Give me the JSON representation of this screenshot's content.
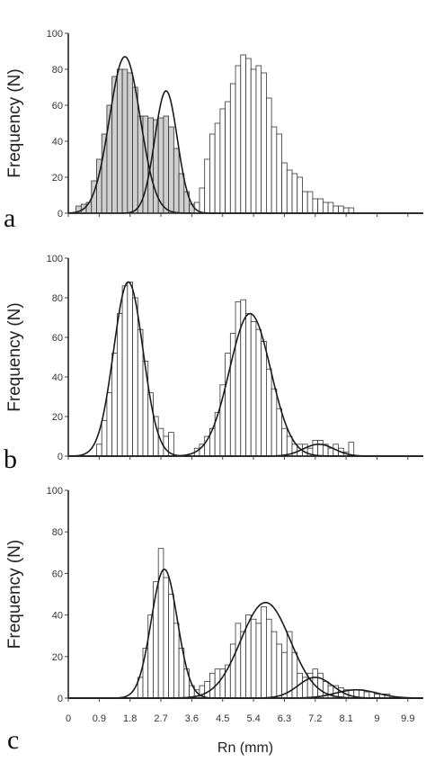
{
  "figure": {
    "xlabel": "Rn (mm)",
    "x_tick_labels": [
      "0",
      "0.9",
      "1.8",
      "2.7",
      "3.6",
      "4.5",
      "5.4",
      "6.3",
      "7.2",
      "8.1",
      "9",
      "9.9"
    ],
    "colors": {
      "bar_fill": "#ffffff",
      "bar_fill_shaded": "#cfcfcf",
      "bar_stroke": "#333333",
      "curve": "#1a1a1a"
    }
  },
  "chart_data": [
    {
      "type": "bar",
      "panel": "a",
      "ylabel": "Frequency (N)",
      "ylim": [
        0,
        100
      ],
      "y_ticks": [
        "0",
        "20",
        "40",
        "60",
        "80",
        "100"
      ],
      "xlim": [
        0,
        10.35
      ],
      "bin_width": 0.15,
      "series": [
        {
          "style": "shaded",
          "x": [
            0.3,
            0.45,
            0.6,
            0.75,
            0.9,
            1.05,
            1.2,
            1.35,
            1.5,
            1.65,
            1.8,
            1.95,
            2.1,
            2.25,
            2.4,
            2.55,
            2.7,
            2.85,
            3.0,
            3.15,
            3.3,
            3.45,
            3.6
          ],
          "values": [
            4,
            5,
            6,
            18,
            30,
            44,
            60,
            76,
            80,
            80,
            78,
            70,
            54,
            54,
            53,
            52,
            53,
            54,
            48,
            36,
            22,
            12,
            5
          ]
        },
        {
          "style": "open",
          "x": [
            3.75,
            3.9,
            4.05,
            4.2,
            4.35,
            4.5,
            4.65,
            4.8,
            4.95,
            5.1,
            5.25,
            5.4,
            5.55,
            5.7,
            5.85,
            6.0,
            6.15,
            6.3,
            6.45,
            6.6,
            6.75,
            6.9,
            7.05,
            7.2,
            7.35,
            7.5,
            7.65,
            7.8,
            7.95,
            8.1,
            8.25
          ],
          "values": [
            6,
            14,
            30,
            44,
            50,
            58,
            62,
            72,
            82,
            88,
            86,
            80,
            82,
            78,
            64,
            48,
            44,
            28,
            24,
            22,
            20,
            12,
            12,
            8,
            8,
            6,
            6,
            4,
            4,
            3,
            3
          ]
        }
      ],
      "curves": [
        {
          "mean": 1.65,
          "sd": 0.45,
          "peak": 87
        },
        {
          "mean": 2.85,
          "sd": 0.33,
          "peak": 68
        }
      ]
    },
    {
      "type": "bar",
      "panel": "b",
      "ylabel": "Frequency (N)",
      "ylim": [
        0,
        100
      ],
      "y_ticks": [
        "0",
        "20",
        "40",
        "60",
        "80",
        "100"
      ],
      "xlim": [
        0,
        10.35
      ],
      "bin_width": 0.15,
      "series": [
        {
          "style": "open",
          "x": [
            0.9,
            1.05,
            1.2,
            1.35,
            1.5,
            1.65,
            1.8,
            1.95,
            2.1,
            2.25,
            2.4,
            2.55,
            2.7,
            2.85,
            3.0,
            3.75,
            3.9,
            4.05,
            4.2,
            4.35,
            4.5,
            4.65,
            4.8,
            4.95,
            5.1,
            5.25,
            5.4,
            5.55,
            5.7,
            5.85,
            6.0,
            6.15,
            6.3,
            6.45,
            6.6,
            6.75,
            6.9,
            7.05,
            7.2,
            7.35,
            7.5,
            7.65,
            7.8,
            7.95,
            8.1,
            8.25
          ],
          "values": [
            6,
            18,
            32,
            52,
            72,
            86,
            88,
            80,
            64,
            48,
            32,
            20,
            14,
            10,
            12,
            4,
            6,
            10,
            14,
            22,
            36,
            52,
            62,
            78,
            79,
            72,
            68,
            64,
            58,
            44,
            34,
            24,
            14,
            10,
            6,
            6,
            6,
            4,
            8,
            8,
            6,
            4,
            6,
            4,
            2,
            7
          ]
        }
      ],
      "curves": [
        {
          "mean": 1.75,
          "sd": 0.43,
          "peak": 88
        },
        {
          "mean": 5.3,
          "sd": 0.6,
          "peak": 72
        },
        {
          "mean": 7.3,
          "sd": 0.45,
          "peak": 6
        }
      ]
    },
    {
      "type": "bar",
      "panel": "c",
      "ylabel": "Frequency (N)",
      "ylim": [
        0,
        100
      ],
      "y_ticks": [
        "0",
        "20",
        "40",
        "60",
        "80",
        "100"
      ],
      "xlim": [
        0,
        10.35
      ],
      "bin_width": 0.15,
      "series": [
        {
          "style": "open",
          "x": [
            2.1,
            2.25,
            2.4,
            2.55,
            2.7,
            2.85,
            3.0,
            3.15,
            3.3,
            3.45,
            3.6,
            3.75,
            3.9,
            4.05,
            4.2,
            4.35,
            4.5,
            4.65,
            4.8,
            4.95,
            5.1,
            5.25,
            5.4,
            5.55,
            5.7,
            5.85,
            6.0,
            6.15,
            6.3,
            6.45,
            6.6,
            6.75,
            6.9,
            7.05,
            7.2,
            7.35,
            7.5,
            7.65,
            7.8,
            7.95,
            8.1,
            8.25,
            8.4,
            8.55,
            8.7,
            8.85,
            9.0,
            9.15,
            9.3
          ],
          "values": [
            10,
            24,
            40,
            56,
            72,
            58,
            50,
            36,
            24,
            14,
            6,
            4,
            6,
            8,
            12,
            14,
            14,
            16,
            26,
            36,
            32,
            40,
            38,
            36,
            44,
            38,
            32,
            26,
            22,
            32,
            22,
            12,
            10,
            12,
            14,
            12,
            8,
            6,
            6,
            5,
            4,
            4,
            4,
            4,
            3,
            3,
            2,
            2,
            2
          ]
        }
      ],
      "curves": [
        {
          "mean": 2.8,
          "sd": 0.38,
          "peak": 62
        },
        {
          "mean": 5.75,
          "sd": 0.72,
          "peak": 46
        },
        {
          "mean": 7.2,
          "sd": 0.5,
          "peak": 10
        },
        {
          "mean": 8.4,
          "sd": 0.6,
          "peak": 4
        }
      ]
    }
  ]
}
